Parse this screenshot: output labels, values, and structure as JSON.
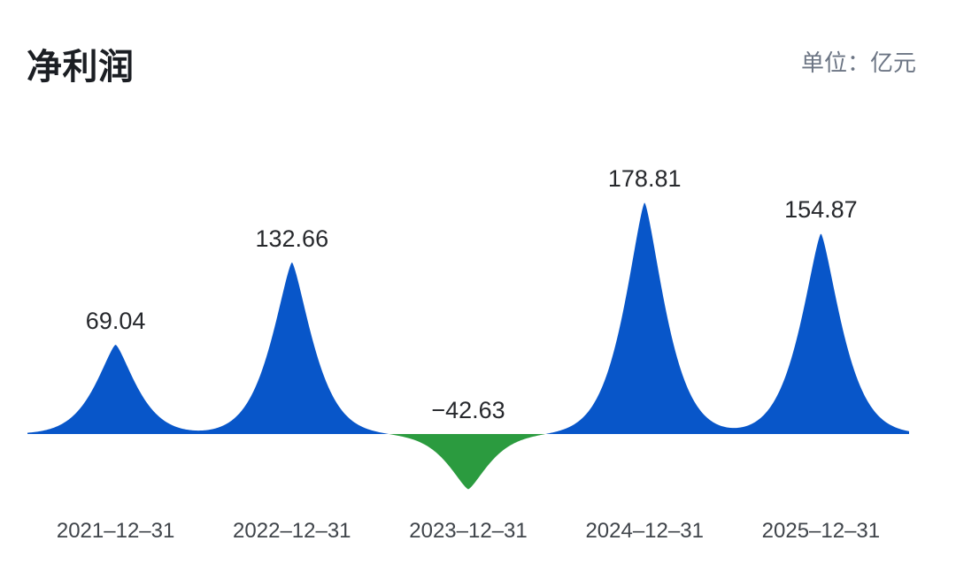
{
  "header": {
    "title": "净利润",
    "unit_label": "单位：亿元"
  },
  "chart_data": {
    "type": "area",
    "title": "净利润",
    "unit": "亿元",
    "categories": [
      "2021-12-31",
      "2022-12-31",
      "2023-12-31",
      "2024-12-31",
      "2025-12-31"
    ],
    "category_labels": [
      "2021–12–31",
      "2022–12–31",
      "2023–12–31",
      "2024–12–31",
      "2025–12–31"
    ],
    "values": [
      69.04,
      132.66,
      -42.63,
      178.81,
      154.87
    ],
    "value_labels": [
      "69.04",
      "132.66",
      "−42.63",
      "178.81",
      "154.87"
    ],
    "baseline": 0,
    "ylim": [
      -80,
      200
    ],
    "grid": false,
    "legend": false,
    "colors": {
      "positive": "#0856C9",
      "negative": "#2B9B3F",
      "title": "#1B1E23",
      "unit": "#6C7584",
      "value_label": "#26282C",
      "axis_label": "#3F444A"
    }
  }
}
